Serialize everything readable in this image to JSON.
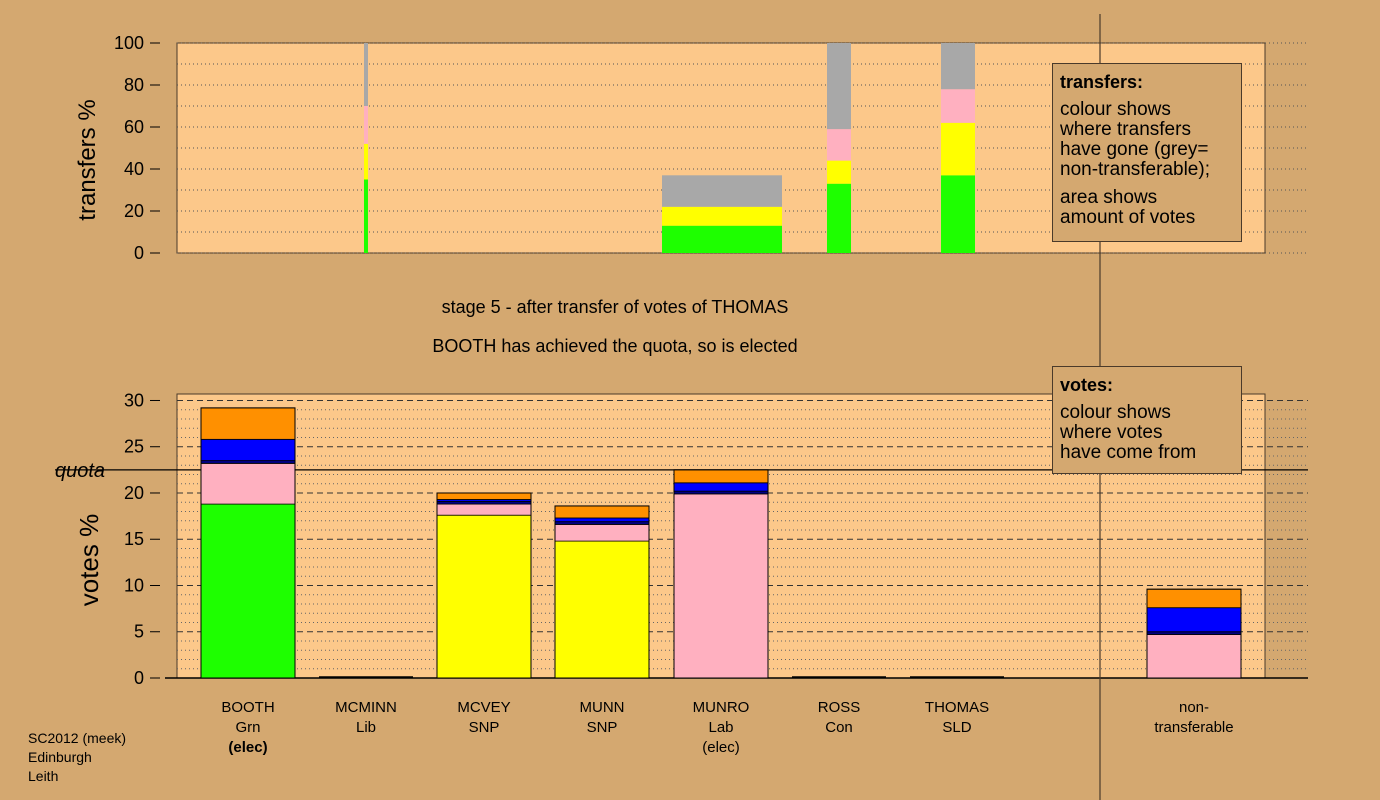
{
  "stage_text": "stage 5 - after transfer of votes of THOMAS",
  "status_text": "BOOTH has achieved the quota, so is elected",
  "footer": {
    "line1": "SC2012 (meek)",
    "line2": "Edinburgh",
    "line3": "Leith"
  },
  "legend_transfers": {
    "title": "transfers:",
    "para1": [
      "colour shows",
      "where transfers",
      "have gone (grey=",
      "non-transferable);"
    ],
    "para2": [
      "area shows",
      "amount of votes"
    ]
  },
  "legend_votes": {
    "title": "votes:",
    "para1": [
      "colour shows",
      "where votes",
      "have come from"
    ]
  },
  "colors": {
    "background": "#d4a870",
    "plot_background": "#fcc88a",
    "green": "#1eff00",
    "yellow": "#ffff00",
    "pink": "#ffb0c0",
    "blue": "#0000ff",
    "navy": "#000080",
    "orange": "#ff9000",
    "grey": "#a8a8a8"
  },
  "chart_data": [
    {
      "type": "bar",
      "name": "transfers",
      "ylabel": "transfers %",
      "ylim": [
        0,
        100
      ],
      "yticks": [
        0,
        20,
        40,
        60,
        80,
        100
      ],
      "grid": "dotted",
      "columns": [
        {
          "candidate": "MCMINN",
          "width": "narrow",
          "segments": [
            {
              "color": "green",
              "value": 35
            },
            {
              "color": "yellow",
              "value": 17
            },
            {
              "color": "pink",
              "value": 18
            },
            {
              "color": "grey",
              "value": 30
            }
          ]
        },
        {
          "candidate": "MUNRO",
          "width": "wide",
          "segments": [
            {
              "color": "green",
              "value": 13
            },
            {
              "color": "yellow",
              "value": 9
            },
            {
              "color": "grey",
              "value": 15
            }
          ]
        },
        {
          "candidate": "ROSS",
          "width": "medium",
          "segments": [
            {
              "color": "green",
              "value": 33
            },
            {
              "color": "yellow",
              "value": 11
            },
            {
              "color": "pink",
              "value": 15
            },
            {
              "color": "grey",
              "value": 41
            }
          ]
        },
        {
          "candidate": "THOMAS",
          "width": "medium",
          "segments": [
            {
              "color": "green",
              "value": 37
            },
            {
              "color": "yellow",
              "value": 25
            },
            {
              "color": "pink",
              "value": 16
            },
            {
              "color": "grey",
              "value": 22
            }
          ]
        }
      ]
    },
    {
      "type": "bar",
      "name": "votes",
      "ylabel": "votes %",
      "ylim": [
        0,
        30
      ],
      "yticks": [
        0,
        5,
        10,
        15,
        20,
        25,
        30
      ],
      "quota": 22.5,
      "quota_label": "quota",
      "grid": "dashed",
      "categories": [
        {
          "name": "BOOTH",
          "party": "Grn",
          "note": "(elec)",
          "note_bold": true,
          "segments": [
            {
              "color": "green",
              "value": 18.8
            },
            {
              "color": "pink",
              "value": 4.4
            },
            {
              "color": "navy",
              "value": 0.3
            },
            {
              "color": "blue",
              "value": 2.3
            },
            {
              "color": "orange",
              "value": 3.4
            }
          ]
        },
        {
          "name": "MCMINN",
          "party": "Lib",
          "note": "",
          "segments": []
        },
        {
          "name": "MCVEY",
          "party": "SNP",
          "note": "",
          "segments": [
            {
              "color": "yellow",
              "value": 17.6
            },
            {
              "color": "pink",
              "value": 1.2
            },
            {
              "color": "navy",
              "value": 0.3
            },
            {
              "color": "blue",
              "value": 0.2
            },
            {
              "color": "orange",
              "value": 0.7
            }
          ]
        },
        {
          "name": "MUNN",
          "party": "SNP",
          "note": "",
          "segments": [
            {
              "color": "yellow",
              "value": 14.8
            },
            {
              "color": "pink",
              "value": 1.8
            },
            {
              "color": "navy",
              "value": 0.3
            },
            {
              "color": "blue",
              "value": 0.4
            },
            {
              "color": "orange",
              "value": 1.3
            }
          ]
        },
        {
          "name": "MUNRO",
          "party": "Lab",
          "note": "(elec)",
          "note_bold": false,
          "segments": [
            {
              "color": "pink",
              "value": 19.9
            },
            {
              "color": "navy",
              "value": 0.3
            },
            {
              "color": "blue",
              "value": 0.9
            },
            {
              "color": "orange",
              "value": 1.4
            }
          ]
        },
        {
          "name": "ROSS",
          "party": "Con",
          "note": "",
          "segments": []
        },
        {
          "name": "THOMAS",
          "party": "SLD",
          "note": "",
          "segments": []
        },
        {
          "name": "non-",
          "party": "transferable",
          "note": "",
          "segments": [
            {
              "color": "pink",
              "value": 4.7
            },
            {
              "color": "navy",
              "value": 0.3
            },
            {
              "color": "blue",
              "value": 2.6
            },
            {
              "color": "orange",
              "value": 2.0
            }
          ]
        }
      ]
    }
  ]
}
